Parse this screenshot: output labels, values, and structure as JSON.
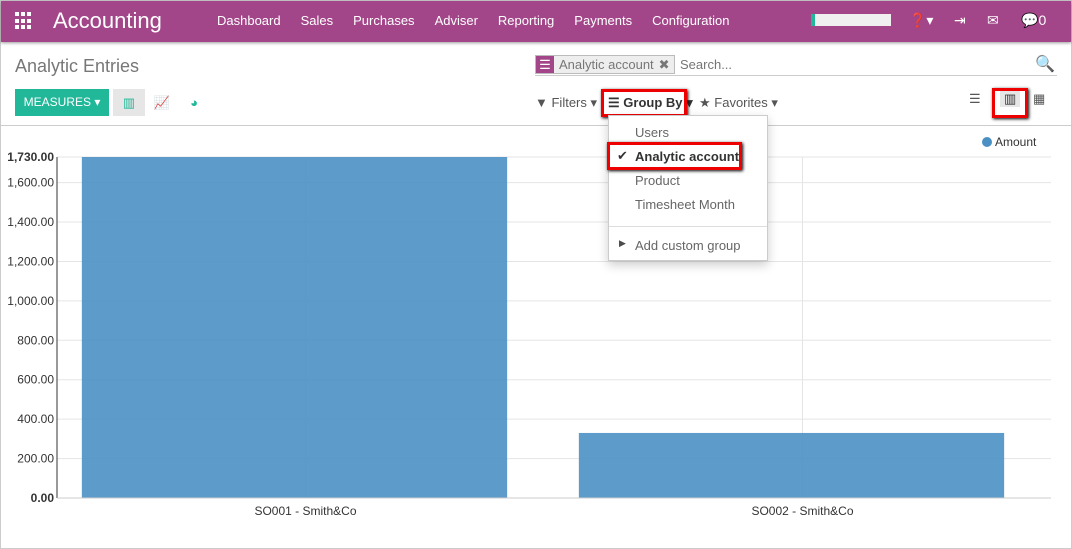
{
  "app": {
    "title": "Accounting",
    "menu": [
      "Dashboard",
      "Sales",
      "Purchases",
      "Adviser",
      "Reporting",
      "Payments",
      "Configuration"
    ],
    "chat_count": "0"
  },
  "page": {
    "title": "Analytic Entries"
  },
  "search": {
    "facet": "Analytic account",
    "placeholder": "Search..."
  },
  "toolbar": {
    "measures": "MEASURES",
    "filters": "Filters",
    "group_by": "Group By",
    "favorites": "Favorites"
  },
  "group_by_menu": {
    "items": [
      "Users",
      "Analytic account",
      "Product",
      "Timesheet Month"
    ],
    "checked": "Analytic account",
    "custom": "Add custom group"
  },
  "colors": {
    "brand": "#a24689",
    "accent": "#21b799",
    "bar": "#4a90c4"
  },
  "chart_data": {
    "type": "bar",
    "categories": [
      "SO001 - Smith&Co",
      "SO002 - Smith&Co"
    ],
    "series": [
      {
        "name": "Amount",
        "values": [
          1730,
          330
        ]
      }
    ],
    "yticks": [
      "0.00",
      "200.00",
      "400.00",
      "600.00",
      "800.00",
      "1,000.00",
      "1,200.00",
      "1,400.00",
      "1,600.00",
      "1,730.00"
    ],
    "ylim": [
      0,
      1730
    ],
    "legend": "top-right",
    "grid": true
  }
}
